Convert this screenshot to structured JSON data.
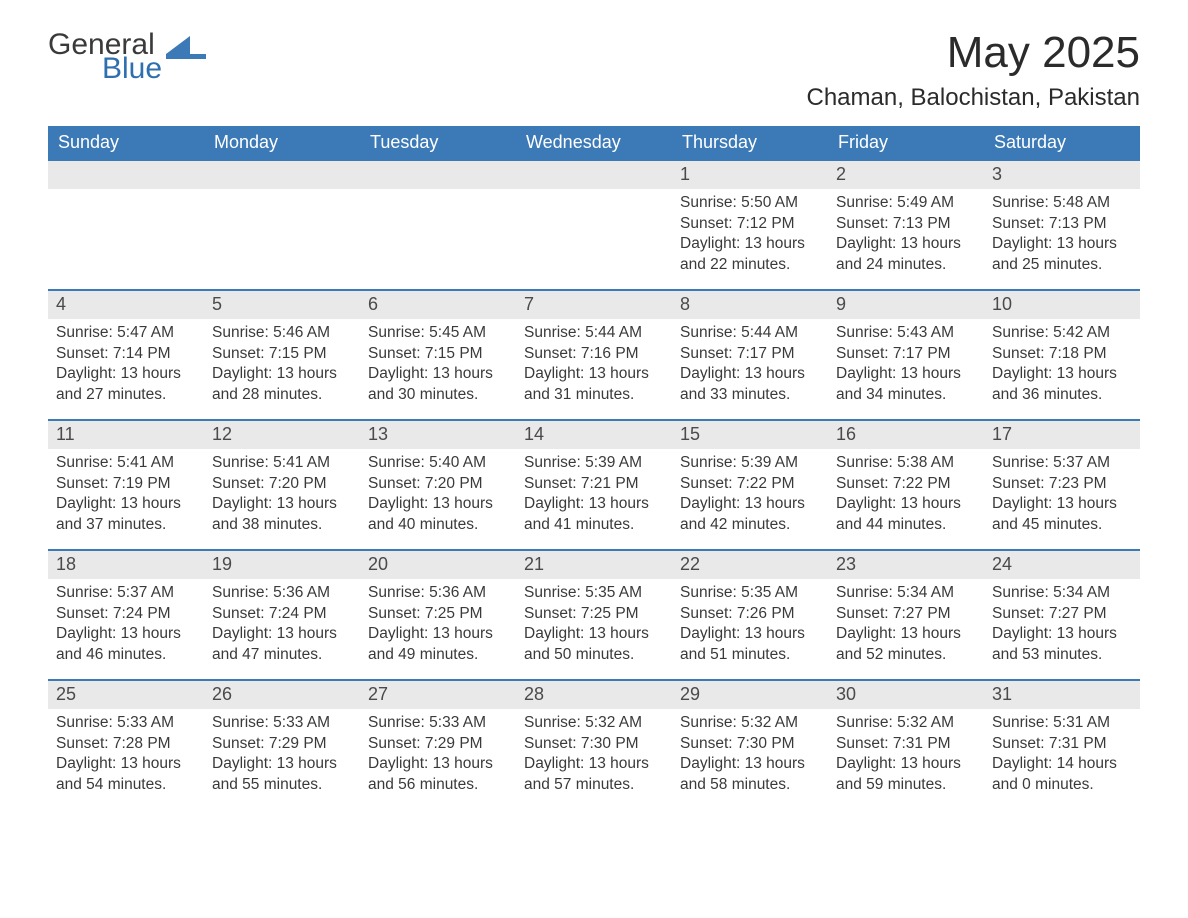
{
  "brand": {
    "general": "General",
    "blue": "Blue",
    "accent": "#3b79b7"
  },
  "title": "May 2025",
  "location": "Chaman, Balochistan, Pakistan",
  "colors": {
    "header_bg": "#3b79b7",
    "header_text": "#ffffff",
    "daynum_bg": "#e9e9e9",
    "week_border": "#3b79b7",
    "body_text": "#3a3a3a",
    "page_bg": "#ffffff"
  },
  "weekdays": [
    "Sunday",
    "Monday",
    "Tuesday",
    "Wednesday",
    "Thursday",
    "Friday",
    "Saturday"
  ],
  "weeks": [
    [
      null,
      null,
      null,
      null,
      {
        "n": "1",
        "sunrise": "5:50 AM",
        "sunset": "7:12 PM",
        "daylight": "13 hours and 22 minutes."
      },
      {
        "n": "2",
        "sunrise": "5:49 AM",
        "sunset": "7:13 PM",
        "daylight": "13 hours and 24 minutes."
      },
      {
        "n": "3",
        "sunrise": "5:48 AM",
        "sunset": "7:13 PM",
        "daylight": "13 hours and 25 minutes."
      }
    ],
    [
      {
        "n": "4",
        "sunrise": "5:47 AM",
        "sunset": "7:14 PM",
        "daylight": "13 hours and 27 minutes."
      },
      {
        "n": "5",
        "sunrise": "5:46 AM",
        "sunset": "7:15 PM",
        "daylight": "13 hours and 28 minutes."
      },
      {
        "n": "6",
        "sunrise": "5:45 AM",
        "sunset": "7:15 PM",
        "daylight": "13 hours and 30 minutes."
      },
      {
        "n": "7",
        "sunrise": "5:44 AM",
        "sunset": "7:16 PM",
        "daylight": "13 hours and 31 minutes."
      },
      {
        "n": "8",
        "sunrise": "5:44 AM",
        "sunset": "7:17 PM",
        "daylight": "13 hours and 33 minutes."
      },
      {
        "n": "9",
        "sunrise": "5:43 AM",
        "sunset": "7:17 PM",
        "daylight": "13 hours and 34 minutes."
      },
      {
        "n": "10",
        "sunrise": "5:42 AM",
        "sunset": "7:18 PM",
        "daylight": "13 hours and 36 minutes."
      }
    ],
    [
      {
        "n": "11",
        "sunrise": "5:41 AM",
        "sunset": "7:19 PM",
        "daylight": "13 hours and 37 minutes."
      },
      {
        "n": "12",
        "sunrise": "5:41 AM",
        "sunset": "7:20 PM",
        "daylight": "13 hours and 38 minutes."
      },
      {
        "n": "13",
        "sunrise": "5:40 AM",
        "sunset": "7:20 PM",
        "daylight": "13 hours and 40 minutes."
      },
      {
        "n": "14",
        "sunrise": "5:39 AM",
        "sunset": "7:21 PM",
        "daylight": "13 hours and 41 minutes."
      },
      {
        "n": "15",
        "sunrise": "5:39 AM",
        "sunset": "7:22 PM",
        "daylight": "13 hours and 42 minutes."
      },
      {
        "n": "16",
        "sunrise": "5:38 AM",
        "sunset": "7:22 PM",
        "daylight": "13 hours and 44 minutes."
      },
      {
        "n": "17",
        "sunrise": "5:37 AM",
        "sunset": "7:23 PM",
        "daylight": "13 hours and 45 minutes."
      }
    ],
    [
      {
        "n": "18",
        "sunrise": "5:37 AM",
        "sunset": "7:24 PM",
        "daylight": "13 hours and 46 minutes."
      },
      {
        "n": "19",
        "sunrise": "5:36 AM",
        "sunset": "7:24 PM",
        "daylight": "13 hours and 47 minutes."
      },
      {
        "n": "20",
        "sunrise": "5:36 AM",
        "sunset": "7:25 PM",
        "daylight": "13 hours and 49 minutes."
      },
      {
        "n": "21",
        "sunrise": "5:35 AM",
        "sunset": "7:25 PM",
        "daylight": "13 hours and 50 minutes."
      },
      {
        "n": "22",
        "sunrise": "5:35 AM",
        "sunset": "7:26 PM",
        "daylight": "13 hours and 51 minutes."
      },
      {
        "n": "23",
        "sunrise": "5:34 AM",
        "sunset": "7:27 PM",
        "daylight": "13 hours and 52 minutes."
      },
      {
        "n": "24",
        "sunrise": "5:34 AM",
        "sunset": "7:27 PM",
        "daylight": "13 hours and 53 minutes."
      }
    ],
    [
      {
        "n": "25",
        "sunrise": "5:33 AM",
        "sunset": "7:28 PM",
        "daylight": "13 hours and 54 minutes."
      },
      {
        "n": "26",
        "sunrise": "5:33 AM",
        "sunset": "7:29 PM",
        "daylight": "13 hours and 55 minutes."
      },
      {
        "n": "27",
        "sunrise": "5:33 AM",
        "sunset": "7:29 PM",
        "daylight": "13 hours and 56 minutes."
      },
      {
        "n": "28",
        "sunrise": "5:32 AM",
        "sunset": "7:30 PM",
        "daylight": "13 hours and 57 minutes."
      },
      {
        "n": "29",
        "sunrise": "5:32 AM",
        "sunset": "7:30 PM",
        "daylight": "13 hours and 58 minutes."
      },
      {
        "n": "30",
        "sunrise": "5:32 AM",
        "sunset": "7:31 PM",
        "daylight": "13 hours and 59 minutes."
      },
      {
        "n": "31",
        "sunrise": "5:31 AM",
        "sunset": "7:31 PM",
        "daylight": "14 hours and 0 minutes."
      }
    ]
  ],
  "labels": {
    "sunrise": "Sunrise: ",
    "sunset": "Sunset: ",
    "daylight": "Daylight: "
  }
}
